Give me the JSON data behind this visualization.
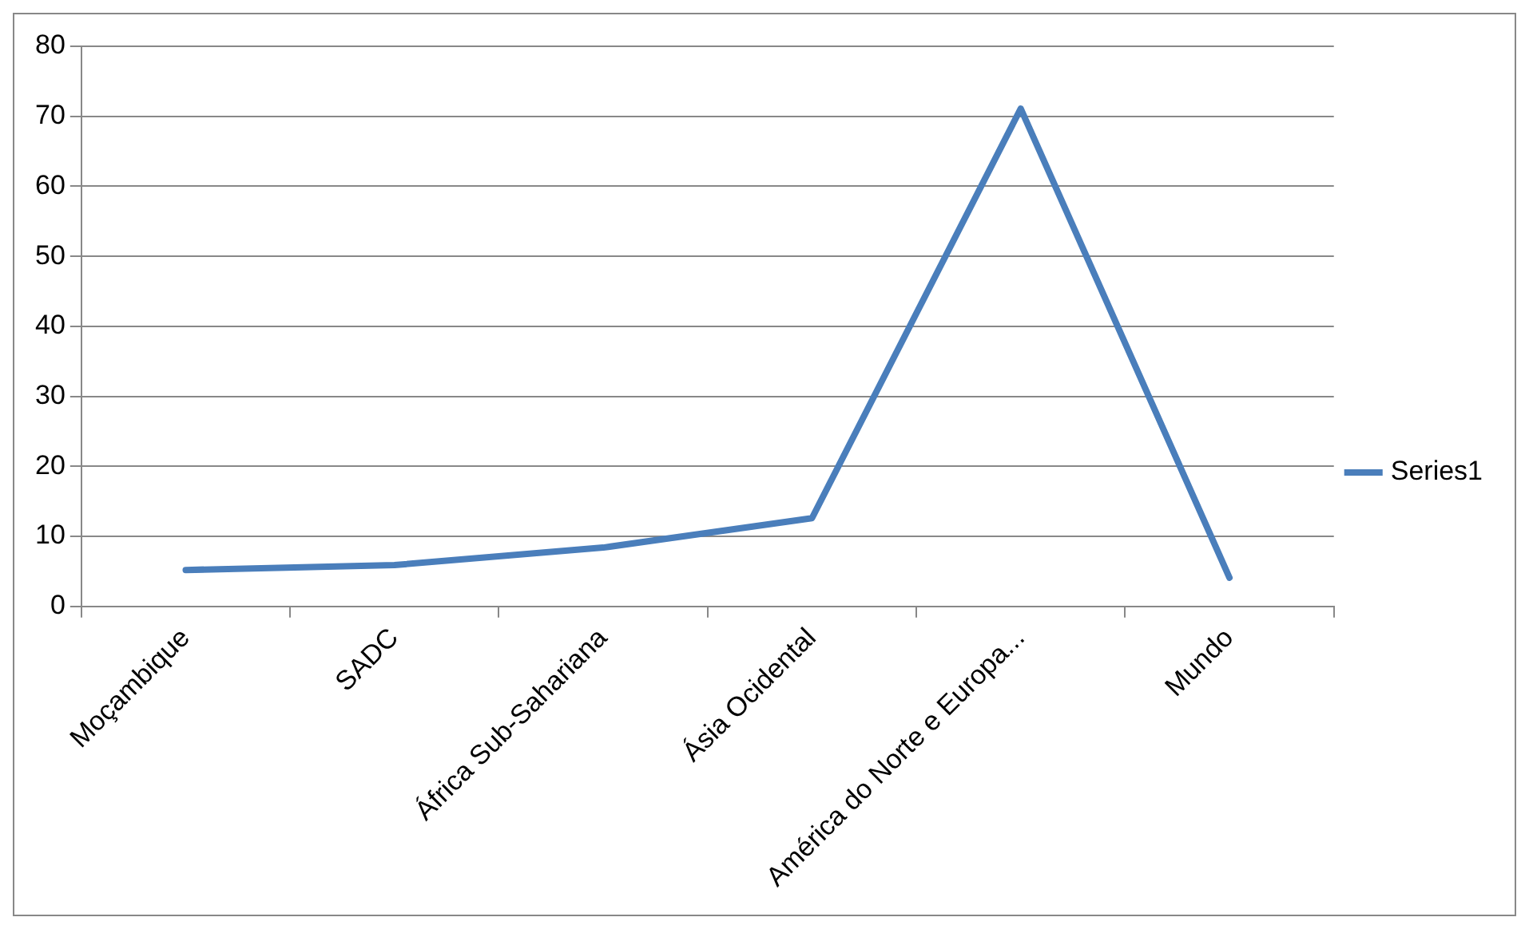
{
  "chart_data": {
    "type": "line",
    "categories": [
      "Moçambique",
      "SADC",
      "África Sub-Sahariana",
      "Ásia Ocidental",
      "América do Norte e Europa...",
      "Mundo"
    ],
    "series": [
      {
        "name": "Series1",
        "color": "#4a7ebb",
        "values": [
          5.2,
          5.9,
          8.4,
          12.6,
          71.1,
          4.1
        ]
      }
    ],
    "ylim": [
      0,
      80
    ],
    "yticks": [
      0,
      10,
      20,
      30,
      40,
      50,
      60,
      70,
      80
    ],
    "grid": "y",
    "legend": "right",
    "marker": "none",
    "line_style": "solid"
  }
}
